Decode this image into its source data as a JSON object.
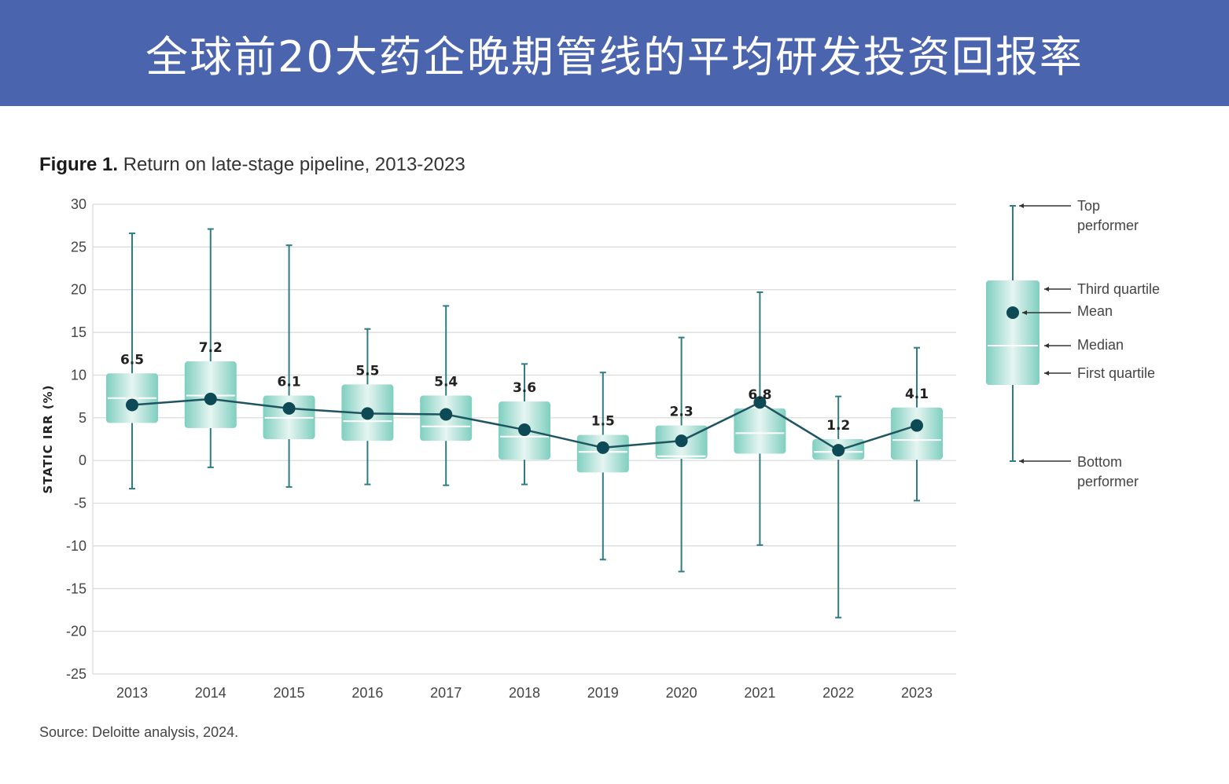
{
  "banner": {
    "title": "全球前20大药企晚期管线的平均研发投资回报率"
  },
  "figure": {
    "label": "Figure 1.",
    "title": "Return on late-stage pipeline, 2013-2023",
    "source": "Source: Deloitte analysis, 2024."
  },
  "colors": {
    "banner": "#4a64ad",
    "box_light": "#e6f5f1",
    "box_dark": "#7fcfc0",
    "whisker": "#2f7d84",
    "mean_line": "#1f5560",
    "mean_dot": "#0d4a55",
    "grid": "#d9d9d9"
  },
  "chart_data": {
    "type": "boxplot",
    "ylabel": "STATIC IRR (%)",
    "ylim": [
      -25,
      30
    ],
    "yticks": [
      30,
      25,
      20,
      15,
      10,
      5,
      0,
      -5,
      -10,
      -15,
      -20,
      -25
    ],
    "categories": [
      "2013",
      "2014",
      "2015",
      "2016",
      "2017",
      "2018",
      "2019",
      "2020",
      "2021",
      "2022",
      "2023"
    ],
    "top_performer": [
      26.6,
      27.1,
      25.2,
      15.4,
      18.1,
      11.3,
      10.3,
      14.4,
      19.7,
      7.5,
      13.2
    ],
    "third_quartile": [
      10.2,
      11.6,
      7.6,
      8.9,
      7.6,
      6.9,
      3.0,
      4.1,
      6.1,
      2.5,
      6.2
    ],
    "median": [
      7.3,
      7.6,
      5.0,
      4.6,
      4.0,
      2.8,
      1.0,
      0.5,
      3.2,
      1.0,
      2.4
    ],
    "first_quartile": [
      4.4,
      3.8,
      2.5,
      2.3,
      2.3,
      0.1,
      -1.4,
      0.2,
      0.8,
      0.1,
      0.1
    ],
    "bottom_performer": [
      -3.3,
      -0.8,
      -3.1,
      -2.8,
      -2.9,
      -2.8,
      -11.6,
      -13.0,
      -9.9,
      -18.4,
      -4.7
    ],
    "mean": [
      6.5,
      7.2,
      6.1,
      5.5,
      5.4,
      3.6,
      1.5,
      2.3,
      6.8,
      1.2,
      4.1
    ],
    "mean_labels": [
      "6.5",
      "7.2",
      "6.1",
      "5.5",
      "5.4",
      "3.6",
      "1.5",
      "2.3",
      "6.8",
      "1.2",
      "4.1"
    ],
    "grid": true,
    "legend": {
      "placement": "right",
      "items": {
        "top": [
          "Top",
          "performer"
        ],
        "q3": "Third quartile",
        "mean": "Mean",
        "median": "Median",
        "q1": "First quartile",
        "bottom": [
          "Bottom",
          "performer"
        ]
      }
    }
  }
}
